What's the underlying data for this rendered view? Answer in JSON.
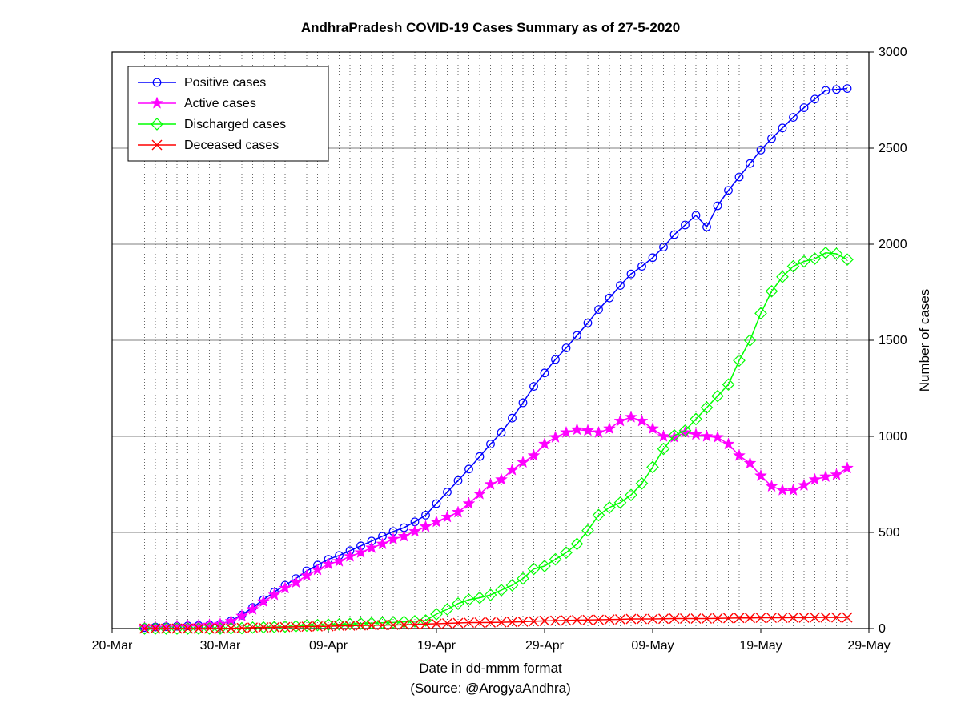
{
  "chart": {
    "type": "line",
    "title": "AndhraPradesh COVID-19 Cases Summary as of 27-5-2020",
    "xlabel": "Date in dd-mmm format",
    "source_label": "(Source: @ArogyaAndhra)",
    "ylabel": "Number of cases",
    "background_color": "#ffffff",
    "plot_bg": "#ffffff",
    "title_fontsize": 17,
    "label_fontsize": 17,
    "tick_fontsize": 16,
    "legend_fontsize": 16,
    "x_axis": {
      "tick_positions": [
        0,
        10,
        20,
        30,
        40,
        50,
        60,
        70
      ],
      "tick_labels": [
        "20-Mar",
        "30-Mar",
        "09-Apr",
        "19-Apr",
        "29-Apr",
        "09-May",
        "19-May",
        "29-May"
      ],
      "min": 0,
      "max": 70,
      "vertical_grid_every": 1,
      "vertical_grid_start": 3,
      "vertical_grid_end": 69
    },
    "y_axis": {
      "tick_positions": [
        0,
        500,
        1000,
        1500,
        2000,
        2500,
        3000
      ],
      "tick_labels": [
        "0",
        "500",
        "1000",
        "1500",
        "2000",
        "2500",
        "3000"
      ],
      "min": 0,
      "max": 3000,
      "side": "right"
    },
    "grid": {
      "major_color": "#000000",
      "major_width": 0.6,
      "minor_color": "#000000",
      "minor_dash": "1,3",
      "minor_width": 0.6
    },
    "series": [
      {
        "name": "Positive cases",
        "color": "#0000ff",
        "marker": "circle",
        "marker_size": 6,
        "line_width": 1.5,
        "x": [
          3,
          4,
          5,
          6,
          7,
          8,
          9,
          10,
          11,
          12,
          13,
          14,
          15,
          16,
          17,
          18,
          19,
          20,
          21,
          22,
          23,
          24,
          25,
          26,
          27,
          28,
          29,
          30,
          31,
          32,
          33,
          34,
          35,
          36,
          37,
          38,
          39,
          40,
          41,
          42,
          43,
          44,
          45,
          46,
          47,
          48,
          49,
          50,
          51,
          52,
          53,
          54,
          55,
          56,
          57,
          58,
          59,
          60,
          61,
          62,
          63,
          64,
          65,
          66,
          67,
          68
        ],
        "y": [
          5,
          8,
          10,
          12,
          14,
          16,
          19,
          23,
          40,
          70,
          110,
          150,
          190,
          225,
          260,
          300,
          330,
          360,
          380,
          405,
          430,
          455,
          480,
          505,
          525,
          555,
          590,
          650,
          710,
          770,
          830,
          895,
          960,
          1020,
          1095,
          1175,
          1260,
          1330,
          1400,
          1460,
          1525,
          1590,
          1660,
          1720,
          1785,
          1845,
          1885,
          1930,
          1985,
          2050,
          2100,
          2150,
          2090,
          2200,
          2280,
          2350,
          2420,
          2490,
          2550,
          2605,
          2660,
          2710,
          2755,
          2800,
          2805,
          2810
        ]
      },
      {
        "name": "Active cases",
        "color": "#ff00ff",
        "marker": "star",
        "marker_size": 7,
        "line_width": 1.5,
        "x": [
          3,
          4,
          5,
          6,
          7,
          8,
          9,
          10,
          11,
          12,
          13,
          14,
          15,
          16,
          17,
          18,
          19,
          20,
          21,
          22,
          23,
          24,
          25,
          26,
          27,
          28,
          29,
          30,
          31,
          32,
          33,
          34,
          35,
          36,
          37,
          38,
          39,
          40,
          41,
          42,
          43,
          44,
          45,
          46,
          47,
          48,
          49,
          50,
          51,
          52,
          53,
          54,
          55,
          56,
          57,
          58,
          59,
          60,
          61,
          62,
          63,
          64,
          65,
          66,
          67,
          68
        ],
        "y": [
          5,
          8,
          10,
          12,
          14,
          16,
          19,
          23,
          38,
          65,
          100,
          140,
          175,
          210,
          240,
          275,
          305,
          335,
          350,
          375,
          395,
          420,
          440,
          465,
          480,
          505,
          530,
          555,
          580,
          605,
          650,
          700,
          750,
          775,
          825,
          865,
          900,
          960,
          995,
          1020,
          1035,
          1030,
          1020,
          1040,
          1080,
          1100,
          1080,
          1040,
          1000,
          995,
          1020,
          1010,
          1000,
          995,
          960,
          900,
          860,
          795,
          740,
          720,
          720,
          745,
          775,
          790,
          800,
          835
        ]
      },
      {
        "name": "Discharged cases",
        "color": "#00ff00",
        "marker": "diamond",
        "marker_size": 7,
        "line_width": 1.5,
        "x": [
          3,
          4,
          5,
          6,
          7,
          8,
          9,
          10,
          11,
          12,
          13,
          14,
          15,
          16,
          17,
          18,
          19,
          20,
          21,
          22,
          23,
          24,
          25,
          26,
          27,
          28,
          29,
          30,
          31,
          32,
          33,
          34,
          35,
          36,
          37,
          38,
          39,
          40,
          41,
          42,
          43,
          44,
          45,
          46,
          47,
          48,
          49,
          50,
          51,
          52,
          53,
          54,
          55,
          56,
          57,
          58,
          59,
          60,
          61,
          62,
          63,
          64,
          65,
          66,
          67,
          68
        ],
        "y": [
          0,
          0,
          0,
          0,
          0,
          0,
          0,
          0,
          1,
          2,
          5,
          6,
          8,
          10,
          12,
          15,
          18,
          20,
          22,
          24,
          26,
          28,
          30,
          32,
          35,
          38,
          42,
          75,
          100,
          130,
          150,
          160,
          175,
          200,
          225,
          260,
          310,
          325,
          360,
          395,
          440,
          510,
          590,
          630,
          655,
          695,
          755,
          840,
          935,
          1005,
          1030,
          1090,
          1150,
          1210,
          1270,
          1395,
          1500,
          1640,
          1755,
          1830,
          1885,
          1910,
          1925,
          1955,
          1950,
          1920
        ]
      },
      {
        "name": "Deceased cases",
        "color": "#ff0000",
        "marker": "x",
        "marker_size": 6,
        "line_width": 1.5,
        "x": [
          3,
          4,
          5,
          6,
          7,
          8,
          9,
          10,
          11,
          12,
          13,
          14,
          15,
          16,
          17,
          18,
          19,
          20,
          21,
          22,
          23,
          24,
          25,
          26,
          27,
          28,
          29,
          30,
          31,
          32,
          33,
          34,
          35,
          36,
          37,
          38,
          39,
          40,
          41,
          42,
          43,
          44,
          45,
          46,
          47,
          48,
          49,
          50,
          51,
          52,
          53,
          54,
          55,
          56,
          57,
          58,
          59,
          60,
          61,
          62,
          63,
          64,
          65,
          66,
          67,
          68
        ],
        "y": [
          0,
          0,
          0,
          0,
          0,
          0,
          0,
          0,
          1,
          3,
          5,
          6,
          7,
          8,
          9,
          10,
          11,
          12,
          14,
          15,
          16,
          17,
          18,
          19,
          20,
          22,
          24,
          25,
          27,
          29,
          31,
          31,
          32,
          33,
          34,
          36,
          38,
          40,
          41,
          42,
          44,
          45,
          46,
          47,
          48,
          50,
          50,
          50,
          51,
          52,
          52,
          52,
          52,
          53,
          54,
          55,
          55,
          56,
          56,
          56,
          57,
          57,
          58,
          58,
          58,
          58
        ]
      }
    ],
    "legend": {
      "position": "top-left",
      "box_color": "#000000",
      "bg": "#ffffff"
    }
  }
}
